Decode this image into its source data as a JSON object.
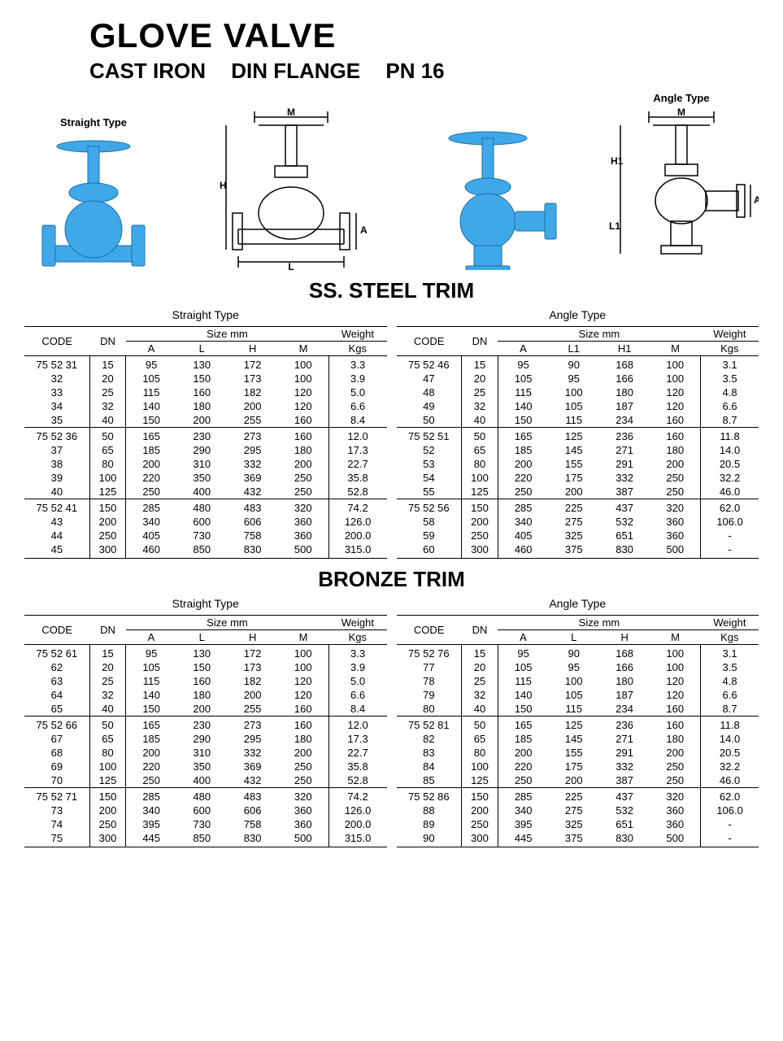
{
  "title": "GLOVE VALVE",
  "subtitle": [
    "CAST IRON",
    "DIN FLANGE",
    "PN 16"
  ],
  "images": [
    {
      "caption": "Straight Type",
      "kind": "photo-straight"
    },
    {
      "caption": "",
      "kind": "diagram-straight",
      "labels": [
        "M",
        "H",
        "A",
        "L"
      ]
    },
    {
      "caption": "",
      "kind": "photo-angle"
    },
    {
      "caption": "Angle Type",
      "kind": "diagram-angle",
      "labels": [
        "M",
        "H1",
        "A",
        "L1"
      ]
    }
  ],
  "valve_color": "#3fa8e8",
  "sections": [
    {
      "heading": "SS. STEEL TRIM",
      "tables": [
        {
          "caption": "Straight Type",
          "size_cols": [
            "A",
            "L",
            "H",
            "M"
          ],
          "code_prefix": "75 52",
          "groups": [
            [
              {
                "code": "75 52 31",
                "dn": 15,
                "s": [
                  95,
                  130,
                  172,
                  100
                ],
                "w": "3.3"
              },
              {
                "code": "32",
                "dn": 20,
                "s": [
                  105,
                  150,
                  173,
                  100
                ],
                "w": "3.9"
              },
              {
                "code": "33",
                "dn": 25,
                "s": [
                  115,
                  160,
                  182,
                  120
                ],
                "w": "5.0"
              },
              {
                "code": "34",
                "dn": 32,
                "s": [
                  140,
                  180,
                  200,
                  120
                ],
                "w": "6.6"
              },
              {
                "code": "35",
                "dn": 40,
                "s": [
                  150,
                  200,
                  255,
                  160
                ],
                "w": "8.4"
              }
            ],
            [
              {
                "code": "75 52 36",
                "dn": 50,
                "s": [
                  165,
                  230,
                  273,
                  160
                ],
                "w": "12.0"
              },
              {
                "code": "37",
                "dn": 65,
                "s": [
                  185,
                  290,
                  295,
                  180
                ],
                "w": "17.3"
              },
              {
                "code": "38",
                "dn": 80,
                "s": [
                  200,
                  310,
                  332,
                  200
                ],
                "w": "22.7"
              },
              {
                "code": "39",
                "dn": 100,
                "s": [
                  220,
                  350,
                  369,
                  250
                ],
                "w": "35.8"
              },
              {
                "code": "40",
                "dn": 125,
                "s": [
                  250,
                  400,
                  432,
                  250
                ],
                "w": "52.8"
              }
            ],
            [
              {
                "code": "75 52 41",
                "dn": 150,
                "s": [
                  285,
                  480,
                  483,
                  320
                ],
                "w": "74.2"
              },
              {
                "code": "43",
                "dn": 200,
                "s": [
                  340,
                  600,
                  606,
                  360
                ],
                "w": "126.0"
              },
              {
                "code": "44",
                "dn": 250,
                "s": [
                  405,
                  730,
                  758,
                  360
                ],
                "w": "200.0"
              },
              {
                "code": "45",
                "dn": 300,
                "s": [
                  460,
                  850,
                  830,
                  500
                ],
                "w": "315.0"
              }
            ]
          ]
        },
        {
          "caption": "Angle Type",
          "size_cols": [
            "A",
            "L1",
            "H1",
            "M"
          ],
          "code_prefix": "75 52",
          "groups": [
            [
              {
                "code": "75 52 46",
                "dn": 15,
                "s": [
                  95,
                  90,
                  168,
                  100
                ],
                "w": "3.1"
              },
              {
                "code": "47",
                "dn": 20,
                "s": [
                  105,
                  95,
                  166,
                  100
                ],
                "w": "3.5"
              },
              {
                "code": "48",
                "dn": 25,
                "s": [
                  115,
                  100,
                  180,
                  120
                ],
                "w": "4.8"
              },
              {
                "code": "49",
                "dn": 32,
                "s": [
                  140,
                  105,
                  187,
                  120
                ],
                "w": "6.6"
              },
              {
                "code": "50",
                "dn": 40,
                "s": [
                  150,
                  115,
                  234,
                  160
                ],
                "w": "8.7"
              }
            ],
            [
              {
                "code": "75 52 51",
                "dn": 50,
                "s": [
                  165,
                  125,
                  236,
                  160
                ],
                "w": "11.8"
              },
              {
                "code": "52",
                "dn": 65,
                "s": [
                  185,
                  145,
                  271,
                  180
                ],
                "w": "14.0"
              },
              {
                "code": "53",
                "dn": 80,
                "s": [
                  200,
                  155,
                  291,
                  200
                ],
                "w": "20.5"
              },
              {
                "code": "54",
                "dn": 100,
                "s": [
                  220,
                  175,
                  332,
                  250
                ],
                "w": "32.2"
              },
              {
                "code": "55",
                "dn": 125,
                "s": [
                  250,
                  200,
                  387,
                  250
                ],
                "w": "46.0"
              }
            ],
            [
              {
                "code": "75 52 56",
                "dn": 150,
                "s": [
                  285,
                  225,
                  437,
                  320
                ],
                "w": "62.0"
              },
              {
                "code": "58",
                "dn": 200,
                "s": [
                  340,
                  275,
                  532,
                  360
                ],
                "w": "106.0"
              },
              {
                "code": "59",
                "dn": 250,
                "s": [
                  405,
                  325,
                  651,
                  360
                ],
                "w": "-"
              },
              {
                "code": "60",
                "dn": 300,
                "s": [
                  460,
                  375,
                  830,
                  500
                ],
                "w": "-"
              }
            ]
          ]
        }
      ]
    },
    {
      "heading": "BRONZE TRIM",
      "tables": [
        {
          "caption": "Straight Type",
          "size_cols": [
            "A",
            "L",
            "H",
            "M"
          ],
          "code_prefix": "75 52",
          "groups": [
            [
              {
                "code": "75 52 61",
                "dn": 15,
                "s": [
                  95,
                  130,
                  172,
                  100
                ],
                "w": "3.3"
              },
              {
                "code": "62",
                "dn": 20,
                "s": [
                  105,
                  150,
                  173,
                  100
                ],
                "w": "3.9"
              },
              {
                "code": "63",
                "dn": 25,
                "s": [
                  115,
                  160,
                  182,
                  120
                ],
                "w": "5.0"
              },
              {
                "code": "64",
                "dn": 32,
                "s": [
                  140,
                  180,
                  200,
                  120
                ],
                "w": "6.6"
              },
              {
                "code": "65",
                "dn": 40,
                "s": [
                  150,
                  200,
                  255,
                  160
                ],
                "w": "8.4"
              }
            ],
            [
              {
                "code": "75 52 66",
                "dn": 50,
                "s": [
                  165,
                  230,
                  273,
                  160
                ],
                "w": "12.0"
              },
              {
                "code": "67",
                "dn": 65,
                "s": [
                  185,
                  290,
                  295,
                  180
                ],
                "w": "17.3"
              },
              {
                "code": "68",
                "dn": 80,
                "s": [
                  200,
                  310,
                  332,
                  200
                ],
                "w": "22.7"
              },
              {
                "code": "69",
                "dn": 100,
                "s": [
                  220,
                  350,
                  369,
                  250
                ],
                "w": "35.8"
              },
              {
                "code": "70",
                "dn": 125,
                "s": [
                  250,
                  400,
                  432,
                  250
                ],
                "w": "52.8"
              }
            ],
            [
              {
                "code": "75 52 71",
                "dn": 150,
                "s": [
                  285,
                  480,
                  483,
                  320
                ],
                "w": "74.2"
              },
              {
                "code": "73",
                "dn": 200,
                "s": [
                  340,
                  600,
                  606,
                  360
                ],
                "w": "126.0"
              },
              {
                "code": "74",
                "dn": 250,
                "s": [
                  395,
                  730,
                  758,
                  360
                ],
                "w": "200.0"
              },
              {
                "code": "75",
                "dn": 300,
                "s": [
                  445,
                  850,
                  830,
                  500
                ],
                "w": "315.0"
              }
            ]
          ]
        },
        {
          "caption": "Angle Type",
          "size_cols": [
            "A",
            "L",
            "H",
            "M"
          ],
          "code_prefix": "75 52",
          "groups": [
            [
              {
                "code": "75 52 76",
                "dn": 15,
                "s": [
                  95,
                  90,
                  168,
                  100
                ],
                "w": "3.1"
              },
              {
                "code": "77",
                "dn": 20,
                "s": [
                  105,
                  95,
                  166,
                  100
                ],
                "w": "3.5"
              },
              {
                "code": "78",
                "dn": 25,
                "s": [
                  115,
                  100,
                  180,
                  120
                ],
                "w": "4.8"
              },
              {
                "code": "79",
                "dn": 32,
                "s": [
                  140,
                  105,
                  187,
                  120
                ],
                "w": "6.6"
              },
              {
                "code": "80",
                "dn": 40,
                "s": [
                  150,
                  115,
                  234,
                  160
                ],
                "w": "8.7"
              }
            ],
            [
              {
                "code": "75 52 81",
                "dn": 50,
                "s": [
                  165,
                  125,
                  236,
                  160
                ],
                "w": "11.8"
              },
              {
                "code": "82",
                "dn": 65,
                "s": [
                  185,
                  145,
                  271,
                  180
                ],
                "w": "14.0"
              },
              {
                "code": "83",
                "dn": 80,
                "s": [
                  200,
                  155,
                  291,
                  200
                ],
                "w": "20.5"
              },
              {
                "code": "84",
                "dn": 100,
                "s": [
                  220,
                  175,
                  332,
                  250
                ],
                "w": "32.2"
              },
              {
                "code": "85",
                "dn": 125,
                "s": [
                  250,
                  200,
                  387,
                  250
                ],
                "w": "46.0"
              }
            ],
            [
              {
                "code": "75 52 86",
                "dn": 150,
                "s": [
                  285,
                  225,
                  437,
                  320
                ],
                "w": "62.0"
              },
              {
                "code": "88",
                "dn": 200,
                "s": [
                  340,
                  275,
                  532,
                  360
                ],
                "w": "106.0"
              },
              {
                "code": "89",
                "dn": 250,
                "s": [
                  395,
                  325,
                  651,
                  360
                ],
                "w": "-"
              },
              {
                "code": "90",
                "dn": 300,
                "s": [
                  445,
                  375,
                  830,
                  500
                ],
                "w": "-"
              }
            ]
          ]
        }
      ]
    }
  ],
  "labels": {
    "code": "CODE",
    "dn": "DN",
    "size": "Size mm",
    "weight": "Weight",
    "kgs": "Kgs"
  }
}
